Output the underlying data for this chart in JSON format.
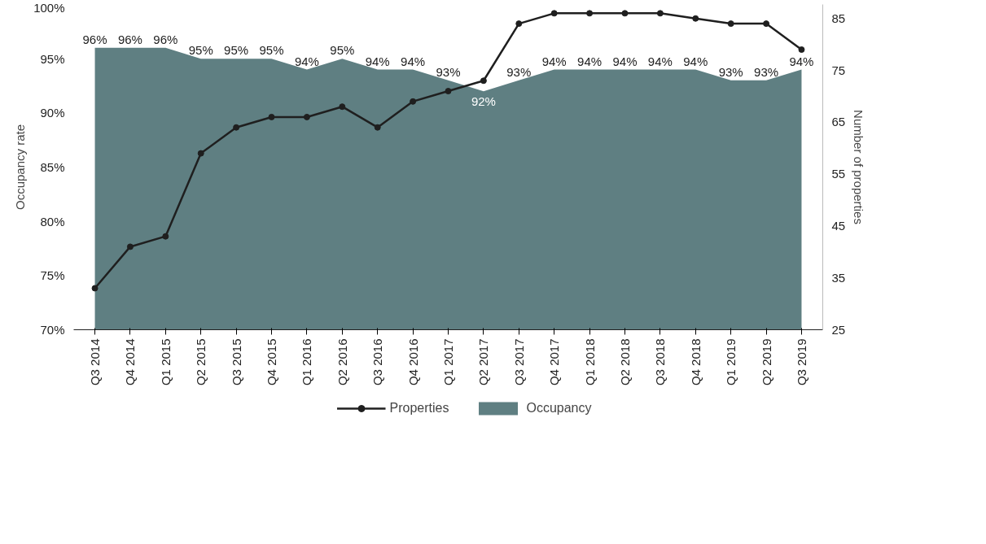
{
  "chart_data": {
    "type": "area",
    "categories": [
      "Q3 2014",
      "Q4 2014",
      "Q1 2015",
      "Q2 2015",
      "Q3 2015",
      "Q4 2015",
      "Q1 2016",
      "Q2 2016",
      "Q3 2016",
      "Q4 2016",
      "Q1 2017",
      "Q2 2017",
      "Q3 2017",
      "Q4 2017",
      "Q1 2018",
      "Q2 2018",
      "Q3 2018",
      "Q4 2018",
      "Q1 2019",
      "Q2 2019",
      "Q3 2019"
    ],
    "ylabel": "Occupancy rate",
    "y2label": "Number of properties",
    "ylim": [
      70,
      100
    ],
    "yticks": [
      {
        "value": 70,
        "label": "70%"
      },
      {
        "value": 75,
        "label": "75%"
      },
      {
        "value": 80,
        "label": "80%"
      },
      {
        "value": 85,
        "label": "85%"
      },
      {
        "value": 90,
        "label": "90%"
      },
      {
        "value": 95,
        "label": "95%"
      },
      {
        "value": 100,
        "label": "100%"
      }
    ],
    "y2lim": [
      25,
      87.7
    ],
    "y2ticks": [
      25,
      35,
      45,
      55,
      65,
      75,
      85
    ],
    "grid": false,
    "legend": "bottom",
    "series": [
      {
        "name": "Properties",
        "type": "line",
        "axis": "y2",
        "color": "#1f1f1f",
        "marker": "circle",
        "values": [
          33,
          41,
          43,
          59,
          64,
          66,
          66,
          68,
          64,
          69,
          71,
          73,
          84,
          86,
          86,
          86,
          86,
          85,
          84,
          84,
          79
        ]
      },
      {
        "name": "Occupancy",
        "color": "#5f7f82",
        "values": [
          96,
          96,
          96,
          95,
          95,
          95,
          94,
          95,
          94,
          94,
          93,
          92,
          93,
          94,
          94,
          94,
          94,
          94,
          93,
          93,
          94
        ],
        "value_labels": [
          "96%",
          "96%",
          "96%",
          "95%",
          "95%",
          "95%",
          "94%",
          "95%",
          "94%",
          "94%",
          "93%",
          "92%",
          "93%",
          "94%",
          "94%",
          "94%",
          "94%",
          "94%",
          "93%",
          "93%",
          "94%"
        ]
      }
    ]
  }
}
